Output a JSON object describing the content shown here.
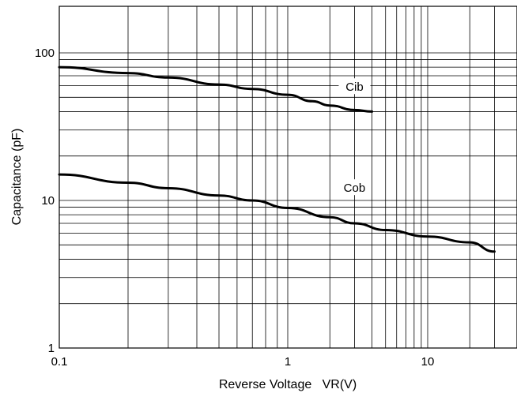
{
  "chart_data": {
    "type": "line",
    "xlabel": "Reverse Voltage   VR(V)",
    "ylabel": "Capacitance (pF)",
    "x_scale": "log",
    "y_scale": "log",
    "xlim": [
      0.1,
      30
    ],
    "ylim": [
      1,
      200
    ],
    "grid": true,
    "x_ticks": [
      {
        "value": 0.1,
        "label": "0.1"
      },
      {
        "value": 1,
        "label": "1"
      },
      {
        "value": 10,
        "label": "10"
      }
    ],
    "y_ticks": [
      {
        "value": 1,
        "label": "1"
      },
      {
        "value": 10,
        "label": "10"
      },
      {
        "value": 100,
        "label": "100"
      }
    ],
    "series": [
      {
        "name": "Cib",
        "x": [
          0.1,
          0.2,
          0.3,
          0.5,
          0.7,
          1,
          1.5,
          2,
          3,
          4
        ],
        "values": [
          80,
          73,
          68,
          61,
          57,
          52,
          47,
          44,
          41,
          40
        ]
      },
      {
        "name": "Cob",
        "x": [
          0.1,
          0.2,
          0.3,
          0.5,
          0.7,
          1,
          2,
          3,
          5,
          10,
          20,
          30
        ],
        "values": [
          15,
          13.2,
          12.1,
          10.8,
          10,
          8.9,
          7.7,
          7,
          6.3,
          5.7,
          5.2,
          4.5
        ]
      }
    ]
  }
}
